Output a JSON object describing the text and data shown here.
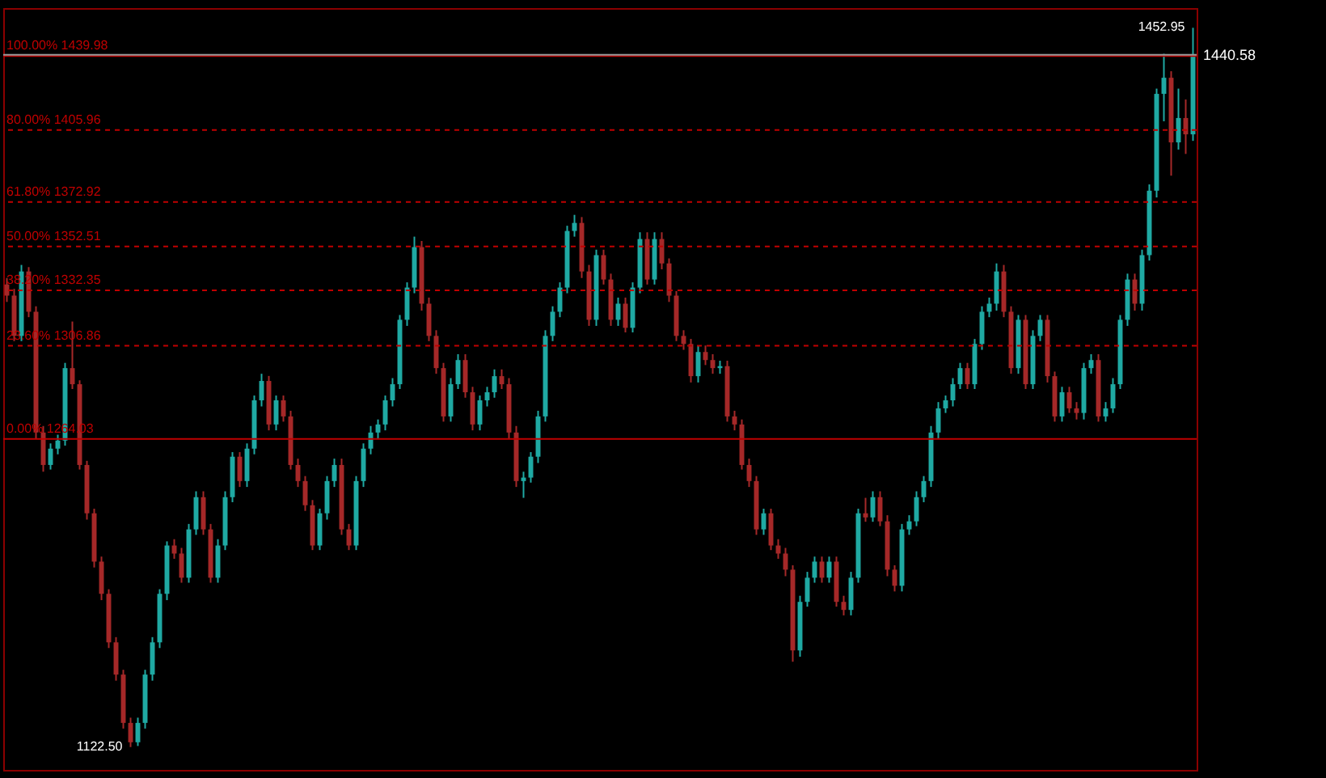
{
  "chart_data": {
    "type": "candlestick",
    "tick_labels": false,
    "categories": [
      null,
      null,
      null,
      null,
      null,
      null,
      null,
      null,
      null,
      null,
      null,
      null,
      null,
      null,
      null,
      null,
      null,
      null,
      null,
      null,
      null,
      null,
      null,
      null,
      null,
      null,
      null,
      null,
      null,
      null,
      null,
      null,
      null,
      null,
      null,
      null,
      null,
      null,
      null,
      null,
      null,
      null,
      null,
      null,
      null,
      null,
      null,
      null,
      null,
      null,
      null,
      null,
      null,
      null,
      null,
      null,
      null,
      null,
      null,
      null,
      null,
      null,
      null,
      null,
      null,
      null,
      null,
      null,
      null,
      null,
      null,
      null,
      null,
      null,
      null,
      null,
      null,
      null,
      null,
      null,
      null,
      null,
      null,
      null,
      null,
      null,
      null,
      null,
      null,
      null,
      null,
      null,
      null,
      null,
      null,
      null,
      null,
      null,
      null,
      null,
      null,
      null,
      null,
      null,
      null,
      null,
      null,
      null,
      null,
      null,
      null,
      null,
      null,
      null,
      null,
      null,
      null,
      null,
      null,
      null,
      null,
      null,
      null,
      null,
      null,
      null,
      null,
      null,
      null,
      null,
      null,
      null,
      null,
      null,
      null,
      null,
      null,
      null,
      null,
      null,
      null,
      null,
      null,
      null,
      null,
      null,
      null,
      null,
      null,
      null,
      null,
      null,
      null,
      null,
      null,
      null,
      null,
      null,
      null,
      null,
      null,
      null,
      null,
      null
    ],
    "ylim": [
      1112,
      1462
    ],
    "ohlc": [
      [
        1335.0,
        1338,
        1327,
        1329.9
      ],
      [
        1329.9,
        1333,
        1309,
        1311.4
      ],
      [
        1311.4,
        1344,
        1309,
        1341.0
      ],
      [
        1341.0,
        1343,
        1320,
        1322.5
      ],
      [
        1322.5,
        1325,
        1264,
        1267.0
      ],
      [
        1267.0,
        1270,
        1249,
        1252.1
      ],
      [
        1252.1,
        1262,
        1250,
        1259.6
      ],
      [
        1259.6,
        1266,
        1257,
        1263.3
      ],
      [
        1263.3,
        1299,
        1261,
        1296.6
      ],
      [
        1296.6,
        1318,
        1287,
        1289.2
      ],
      [
        1289.2,
        1291,
        1250,
        1252.1
      ],
      [
        1252.1,
        1254,
        1227,
        1229.9
      ],
      [
        1229.9,
        1232,
        1205,
        1207.7
      ],
      [
        1207.7,
        1210,
        1190,
        1192.9
      ],
      [
        1192.9,
        1195,
        1168,
        1170.6
      ],
      [
        1170.6,
        1173,
        1153,
        1155.8
      ],
      [
        1155.8,
        1158,
        1131,
        1133.6
      ],
      [
        1133.6,
        1136,
        1122.5,
        1124.7
      ],
      [
        1124.7,
        1136,
        1123,
        1133.6
      ],
      [
        1133.6,
        1158,
        1131,
        1155.8
      ],
      [
        1155.8,
        1173,
        1153,
        1170.6
      ],
      [
        1170.6,
        1195,
        1168,
        1192.9
      ],
      [
        1192.9,
        1217,
        1190,
        1215.1
      ],
      [
        1215.1,
        1218,
        1209,
        1211.4
      ],
      [
        1211.4,
        1214,
        1198,
        1200.3
      ],
      [
        1200.3,
        1225,
        1198,
        1222.5
      ],
      [
        1222.5,
        1240,
        1220,
        1237.3
      ],
      [
        1237.3,
        1240,
        1220,
        1222.5
      ],
      [
        1222.5,
        1225,
        1198,
        1200.3
      ],
      [
        1200.3,
        1218,
        1198,
        1215.1
      ],
      [
        1215.1,
        1240,
        1213,
        1237.3
      ],
      [
        1237.3,
        1258,
        1235,
        1255.9
      ],
      [
        1255.9,
        1258,
        1242,
        1244.7
      ],
      [
        1244.7,
        1262,
        1242,
        1259.6
      ],
      [
        1259.6,
        1284,
        1257,
        1281.8
      ],
      [
        1281.8,
        1294,
        1279,
        1290.7
      ],
      [
        1290.7,
        1293,
        1268,
        1270.7
      ],
      [
        1270.7,
        1284,
        1268,
        1281.8
      ],
      [
        1281.8,
        1284,
        1272,
        1274.4
      ],
      [
        1274.4,
        1277,
        1250,
        1252.1
      ],
      [
        1252.1,
        1255,
        1242,
        1244.7
      ],
      [
        1244.7,
        1247,
        1231,
        1233.6
      ],
      [
        1233.6,
        1236,
        1213,
        1215.1
      ],
      [
        1215.1,
        1232,
        1213,
        1229.9
      ],
      [
        1229.9,
        1247,
        1227,
        1244.7
      ],
      [
        1244.7,
        1255,
        1242,
        1252.1
      ],
      [
        1252.1,
        1255,
        1220,
        1222.5
      ],
      [
        1222.5,
        1225,
        1213,
        1215.1
      ],
      [
        1215.1,
        1247,
        1213,
        1244.7
      ],
      [
        1244.7,
        1262,
        1242,
        1259.6
      ],
      [
        1259.6,
        1270,
        1257,
        1267.0
      ],
      [
        1267.0,
        1273,
        1264,
        1270.7
      ],
      [
        1270.7,
        1284,
        1268,
        1281.8
      ],
      [
        1281.8,
        1292,
        1279,
        1289.2
      ],
      [
        1289.2,
        1321,
        1287,
        1318.8
      ],
      [
        1318.8,
        1336,
        1316,
        1333.6
      ],
      [
        1333.6,
        1357,
        1331,
        1352.2
      ],
      [
        1352.2,
        1355,
        1323,
        1326.2
      ],
      [
        1326.2,
        1329,
        1309,
        1311.4
      ],
      [
        1311.4,
        1314,
        1294,
        1296.6
      ],
      [
        1296.6,
        1299,
        1272,
        1274.4
      ],
      [
        1274.4,
        1292,
        1272,
        1289.2
      ],
      [
        1289.2,
        1303,
        1287,
        1300.3
      ],
      [
        1300.3,
        1303,
        1283,
        1285.5
      ],
      [
        1285.5,
        1288,
        1268,
        1270.7
      ],
      [
        1270.7,
        1284,
        1268,
        1281.8
      ],
      [
        1281.8,
        1288,
        1279,
        1285.5
      ],
      [
        1285.5,
        1296,
        1283,
        1292.9
      ],
      [
        1292.9,
        1296,
        1287,
        1289.2
      ],
      [
        1289.2,
        1292,
        1264,
        1267.0
      ],
      [
        1267.0,
        1270,
        1242,
        1244.7
      ],
      [
        1244.7,
        1249,
        1237,
        1246.3
      ],
      [
        1246.3,
        1258,
        1244,
        1255.9
      ],
      [
        1255.9,
        1277,
        1253,
        1274.4
      ],
      [
        1274.4,
        1314,
        1272,
        1311.4
      ],
      [
        1311.4,
        1325,
        1309,
        1322.5
      ],
      [
        1322.5,
        1336,
        1320,
        1333.6
      ],
      [
        1333.6,
        1362,
        1331,
        1359.6
      ],
      [
        1359.6,
        1367,
        1357,
        1363.3
      ],
      [
        1363.3,
        1366,
        1338,
        1341.0
      ],
      [
        1341.0,
        1344,
        1316,
        1318.8
      ],
      [
        1318.8,
        1351,
        1316,
        1348.5
      ],
      [
        1348.5,
        1351,
        1335,
        1337.3
      ],
      [
        1337.3,
        1340,
        1316,
        1318.8
      ],
      [
        1318.8,
        1329,
        1316,
        1326.2
      ],
      [
        1326.2,
        1329,
        1313,
        1315.1
      ],
      [
        1315.1,
        1336,
        1313,
        1333.6
      ],
      [
        1333.6,
        1359,
        1331,
        1355.9
      ],
      [
        1355.9,
        1359,
        1335,
        1337.3
      ],
      [
        1337.3,
        1359,
        1335,
        1355.9
      ],
      [
        1355.9,
        1359,
        1342,
        1344.7
      ],
      [
        1344.7,
        1347,
        1327,
        1329.9
      ],
      [
        1329.9,
        1332,
        1309,
        1311.4
      ],
      [
        1311.4,
        1314,
        1305,
        1307.7
      ],
      [
        1307.7,
        1310,
        1290,
        1292.9
      ],
      [
        1292.9,
        1307,
        1290,
        1304.0
      ],
      [
        1304.0,
        1307,
        1298,
        1300.3
      ],
      [
        1300.3,
        1303,
        1294,
        1296.6
      ],
      [
        1296.6,
        1300,
        1294,
        1297.5
      ],
      [
        1297.5,
        1300,
        1272,
        1274.4
      ],
      [
        1274.4,
        1277,
        1268,
        1270.7
      ],
      [
        1270.7,
        1273,
        1250,
        1252.1
      ],
      [
        1252.1,
        1255,
        1242,
        1244.7
      ],
      [
        1244.7,
        1247,
        1220,
        1222.5
      ],
      [
        1222.5,
        1232,
        1220,
        1229.9
      ],
      [
        1229.9,
        1232,
        1213,
        1215.1
      ],
      [
        1215.1,
        1218,
        1209,
        1211.4
      ],
      [
        1211.4,
        1214,
        1201,
        1204.0
      ],
      [
        1204.0,
        1206,
        1161.7,
        1166.9
      ],
      [
        1166.9,
        1192,
        1164,
        1189.2
      ],
      [
        1189.2,
        1203,
        1187,
        1200.3
      ],
      [
        1200.3,
        1210,
        1198,
        1207.7
      ],
      [
        1207.7,
        1210,
        1198,
        1200.3
      ],
      [
        1200.3,
        1210,
        1198,
        1207.7
      ],
      [
        1207.7,
        1210,
        1187,
        1189.2
      ],
      [
        1189.2,
        1192,
        1183,
        1185.5
      ],
      [
        1185.5,
        1203,
        1183,
        1200.3
      ],
      [
        1200.3,
        1232,
        1198,
        1229.9
      ],
      [
        1229.9,
        1237,
        1226,
        1228.0
      ],
      [
        1228.0,
        1240,
        1226,
        1237.3
      ],
      [
        1237.3,
        1240,
        1224,
        1226.2
      ],
      [
        1226.2,
        1229,
        1201,
        1204.0
      ],
      [
        1204.0,
        1206,
        1194,
        1196.6
      ],
      [
        1196.6,
        1225,
        1194,
        1222.5
      ],
      [
        1222.5,
        1229,
        1220,
        1226.2
      ],
      [
        1226.2,
        1240,
        1224,
        1237.3
      ],
      [
        1237.3,
        1247,
        1235,
        1244.7
      ],
      [
        1244.7,
        1270,
        1242,
        1267.0
      ],
      [
        1267.0,
        1281,
        1264,
        1278.1
      ],
      [
        1278.1,
        1284,
        1276,
        1281.8
      ],
      [
        1281.8,
        1292,
        1279,
        1289.2
      ],
      [
        1289.2,
        1299,
        1287,
        1296.6
      ],
      [
        1296.6,
        1299,
        1287,
        1289.2
      ],
      [
        1289.2,
        1310,
        1287,
        1307.7
      ],
      [
        1307.7,
        1325,
        1305,
        1322.5
      ],
      [
        1322.5,
        1329,
        1320,
        1326.2
      ],
      [
        1326.2,
        1344.7,
        1323,
        1341.0
      ],
      [
        1341.0,
        1344,
        1320,
        1322.5
      ],
      [
        1322.5,
        1325,
        1294,
        1296.6
      ],
      [
        1296.6,
        1321,
        1294,
        1318.8
      ],
      [
        1318.8,
        1321,
        1287,
        1289.2
      ],
      [
        1289.2,
        1314,
        1287,
        1311.4
      ],
      [
        1311.4,
        1321,
        1309,
        1318.8
      ],
      [
        1318.8,
        1321,
        1290,
        1292.9
      ],
      [
        1292.9,
        1295,
        1272,
        1274.4
      ],
      [
        1274.4,
        1288,
        1272,
        1285.5
      ],
      [
        1285.5,
        1288,
        1276,
        1278.1
      ],
      [
        1278.1,
        1281,
        1273,
        1276.0
      ],
      [
        1276.0,
        1299,
        1273,
        1296.6
      ],
      [
        1296.6,
        1303,
        1294,
        1300.3
      ],
      [
        1300.3,
        1303,
        1272,
        1274.4
      ],
      [
        1274.4,
        1281,
        1272,
        1278.1
      ],
      [
        1278.1,
        1292,
        1276,
        1289.2
      ],
      [
        1289.2,
        1321,
        1287,
        1318.8
      ],
      [
        1318.8,
        1340,
        1316,
        1337.3
      ],
      [
        1337.3,
        1340,
        1323,
        1326.2
      ],
      [
        1326.2,
        1351,
        1323,
        1348.5
      ],
      [
        1348.5,
        1381,
        1346,
        1378.1
      ],
      [
        1378.1,
        1425,
        1375,
        1422.6
      ],
      [
        1422.6,
        1441,
        1410,
        1430.0
      ],
      [
        1430.0,
        1433,
        1385,
        1400.3
      ],
      [
        1400.3,
        1425,
        1397,
        1411.5
      ],
      [
        1411.5,
        1420,
        1395,
        1404.0
      ],
      [
        1404.0,
        1452.95,
        1401,
        1440.58
      ]
    ],
    "ref_lines": [
      {
        "axis": "y",
        "value": 1439.98,
        "label": "100.00% 1439.98",
        "color": "#c00000"
      },
      {
        "axis": "y",
        "value": 1405.96,
        "label": "80.00% 1405.96",
        "color": "#c00000",
        "line_style": "dashed"
      },
      {
        "axis": "y",
        "value": 1372.92,
        "label": "61.80% 1372.92",
        "color": "#c00000",
        "line_style": "dashed"
      },
      {
        "axis": "y",
        "value": 1352.51,
        "label": "50.00% 1352.51",
        "color": "#c00000",
        "line_style": "dashed"
      },
      {
        "axis": "y",
        "value": 1332.35,
        "label": "38.20% 1332.35",
        "color": "#c00000",
        "line_style": "dashed"
      },
      {
        "axis": "y",
        "value": 1306.86,
        "label": "23.60% 1306.86",
        "color": "#c00000",
        "line_style": "dashed"
      },
      {
        "axis": "y",
        "value": 1264.03,
        "label": "0.00% 1264.03",
        "color": "#c00000"
      },
      {
        "axis": "y",
        "value": 1440.58,
        "label": "1440.58",
        "color": "#9a9a9a"
      }
    ],
    "annotations": [
      "1452.95",
      "1122.50"
    ]
  }
}
